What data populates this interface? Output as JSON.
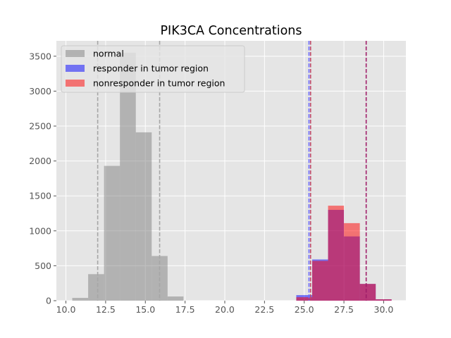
{
  "chart_data": {
    "type": "histogram",
    "title": "PIK3CA Concentrations",
    "xlabel": "",
    "ylabel": "",
    "xlim": [
      9.4,
      31.4
    ],
    "ylim": [
      0,
      3720
    ],
    "x_ticks": [
      10.0,
      12.5,
      15.0,
      17.5,
      20.0,
      22.5,
      25.0,
      27.5,
      30.0
    ],
    "x_tick_labels": [
      "10.0",
      "12.5",
      "15.0",
      "17.5",
      "20.0",
      "22.5",
      "25.0",
      "27.5",
      "30.0"
    ],
    "y_ticks": [
      0,
      500,
      1000,
      1500,
      2000,
      2500,
      3000,
      3500
    ],
    "y_tick_labels": [
      "0",
      "500",
      "1000",
      "1500",
      "2000",
      "2500",
      "3000",
      "3500"
    ],
    "grid": true,
    "legend_position": "top-left",
    "series": [
      {
        "name": "normal",
        "color": "#808080",
        "opacity": 0.5,
        "bins": [
          {
            "x0": 10.4,
            "x1": 11.4,
            "value": 40
          },
          {
            "x0": 11.4,
            "x1": 12.4,
            "value": 380
          },
          {
            "x0": 12.4,
            "x1": 13.4,
            "value": 1930
          },
          {
            "x0": 13.4,
            "x1": 14.4,
            "value": 3550
          },
          {
            "x0": 14.4,
            "x1": 15.4,
            "value": 2410
          },
          {
            "x0": 15.4,
            "x1": 16.4,
            "value": 640
          },
          {
            "x0": 16.4,
            "x1": 17.4,
            "value": 60
          }
        ]
      },
      {
        "name": "responder in tumor region",
        "color": "#0000ff",
        "opacity": 0.5,
        "bins": [
          {
            "x0": 24.5,
            "x1": 25.5,
            "value": 80
          },
          {
            "x0": 25.5,
            "x1": 26.5,
            "value": 590
          },
          {
            "x0": 26.5,
            "x1": 27.5,
            "value": 1300
          },
          {
            "x0": 27.5,
            "x1": 28.5,
            "value": 920
          },
          {
            "x0": 28.5,
            "x1": 29.5,
            "value": 240
          },
          {
            "x0": 29.5,
            "x1": 30.5,
            "value": 20
          }
        ]
      },
      {
        "name": "nonresponder in tumor region",
        "color": "#ff0000",
        "opacity": 0.5,
        "bins": [
          {
            "x0": 24.5,
            "x1": 25.5,
            "value": 50
          },
          {
            "x0": 25.5,
            "x1": 26.5,
            "value": 570
          },
          {
            "x0": 26.5,
            "x1": 27.5,
            "value": 1360
          },
          {
            "x0": 27.5,
            "x1": 28.5,
            "value": 1110
          },
          {
            "x0": 28.5,
            "x1": 29.5,
            "value": 240
          },
          {
            "x0": 29.5,
            "x1": 30.5,
            "value": 20
          }
        ]
      }
    ],
    "reference_lines": [
      {
        "x": 12.0,
        "color": "#a6a6a6"
      },
      {
        "x": 15.9,
        "color": "#a6a6a6"
      },
      {
        "x": 25.3,
        "color": "#6a6aff"
      },
      {
        "x": 25.4,
        "color": "#c04a6a"
      },
      {
        "x": 28.9,
        "color": "#a01e6a"
      }
    ]
  }
}
